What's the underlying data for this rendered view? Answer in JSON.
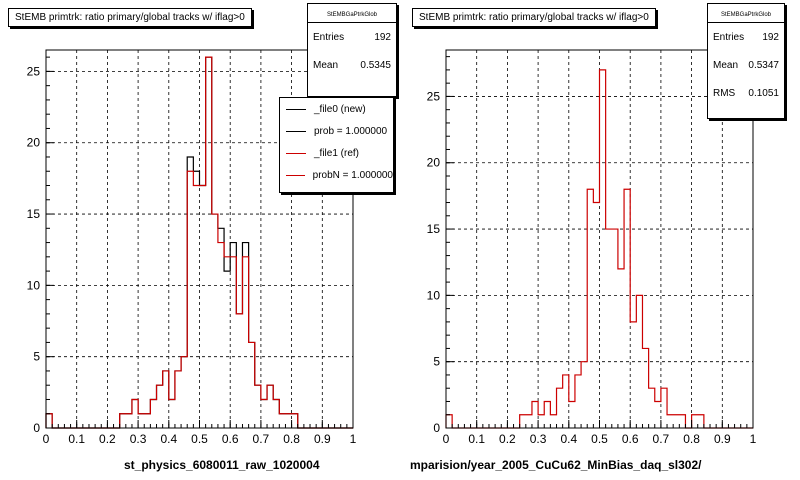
{
  "pads": [
    {
      "title": "StEMB primtrk: ratio primary/global tracks w/ iflag>0",
      "stats": {
        "name": "StEMBGaPtrkGlob",
        "entries_label": "Entries",
        "entries": "192",
        "mean_label": "Mean",
        "mean": "0.5345"
      },
      "legend": [
        {
          "label": "_file0 (new)",
          "color": "#000000"
        },
        {
          "label": "prob = 1.000000",
          "color": "#000000"
        },
        {
          "label": "_file1 (ref)",
          "color": "#cc0000"
        },
        {
          "label": "probN = 1.000000",
          "color": "#cc0000"
        }
      ],
      "x_axis_title": "st_physics_6080011_raw_1020004"
    },
    {
      "title": "StEMB primtrk: ratio primary/global tracks w/ iflag>0",
      "stats": {
        "name": "StEMBGaPtrkGlob",
        "entries_label": "Entries",
        "entries": "192",
        "mean_label": "Mean",
        "mean": "0.5347",
        "rms_label": "RMS",
        "rms": "0.1051"
      },
      "x_axis_title": "mparision/year_2005_CuCu62_MinBias_daq_sl302/"
    }
  ],
  "chart_data": [
    {
      "type": "histogram",
      "title": "StEMB primtrk: ratio primary/global tracks w/ iflag>0",
      "xlabel": "st_physics_6080011_raw_1020004",
      "xlim": [
        0,
        1
      ],
      "ylim": [
        0,
        26.5
      ],
      "xticks": [
        0,
        0.1,
        0.2,
        0.3,
        0.4,
        0.5,
        0.6,
        0.7,
        0.8,
        0.9,
        1
      ],
      "yticks": [
        0,
        5,
        10,
        15,
        20,
        25
      ],
      "grid": true,
      "legend_position": "top-right",
      "bin_width": 0.02,
      "series": [
        {
          "name": "_file0 (new)",
          "color": "#000000",
          "values": [
            1,
            0,
            0,
            0,
            0,
            0,
            0,
            0,
            0,
            0,
            0,
            0,
            1,
            1,
            2,
            1,
            1,
            2,
            3,
            4,
            2,
            4,
            5,
            19,
            18,
            17,
            26,
            15,
            14,
            11,
            13,
            8,
            13,
            6,
            3,
            2,
            3,
            2,
            1,
            1,
            1,
            0,
            0,
            0,
            0,
            0,
            0,
            0,
            0,
            0
          ]
        },
        {
          "name": "_file1 (ref)",
          "color": "#cc0000",
          "values": [
            1,
            0,
            0,
            0,
            0,
            0,
            0,
            0,
            0,
            0,
            0,
            0,
            1,
            1,
            2,
            1,
            1,
            2,
            3,
            4,
            2,
            4,
            5,
            18,
            17,
            17,
            26,
            15,
            13,
            12,
            12,
            8,
            12,
            6,
            3,
            2,
            3,
            2,
            1,
            1,
            1,
            0,
            0,
            0,
            0,
            0,
            0,
            0,
            0,
            0
          ]
        }
      ]
    },
    {
      "type": "histogram",
      "title": "StEMB primtrk: ratio primary/global tracks w/ iflag>0",
      "xlabel": "mparision/year_2005_CuCu62_MinBias_daq_sl302/",
      "xlim": [
        0,
        1
      ],
      "ylim": [
        0,
        28.5
      ],
      "xticks": [
        0,
        0.1,
        0.2,
        0.3,
        0.4,
        0.5,
        0.6,
        0.7,
        0.8,
        0.9,
        1
      ],
      "yticks": [
        0,
        5,
        10,
        15,
        20,
        25
      ],
      "grid": true,
      "bin_width": 0.02,
      "series": [
        {
          "name": "",
          "color": "#cc0000",
          "values": [
            1,
            0,
            0,
            0,
            0,
            0,
            0,
            0,
            0,
            0,
            0,
            0,
            1,
            1,
            2,
            1,
            2,
            1,
            3,
            4,
            2,
            4,
            5,
            18,
            17,
            27,
            15,
            15,
            12,
            18,
            8,
            10,
            6,
            3,
            2,
            3,
            1,
            1,
            1,
            0,
            1,
            1,
            0,
            0,
            0,
            0,
            0,
            0,
            0,
            0
          ]
        }
      ]
    }
  ]
}
